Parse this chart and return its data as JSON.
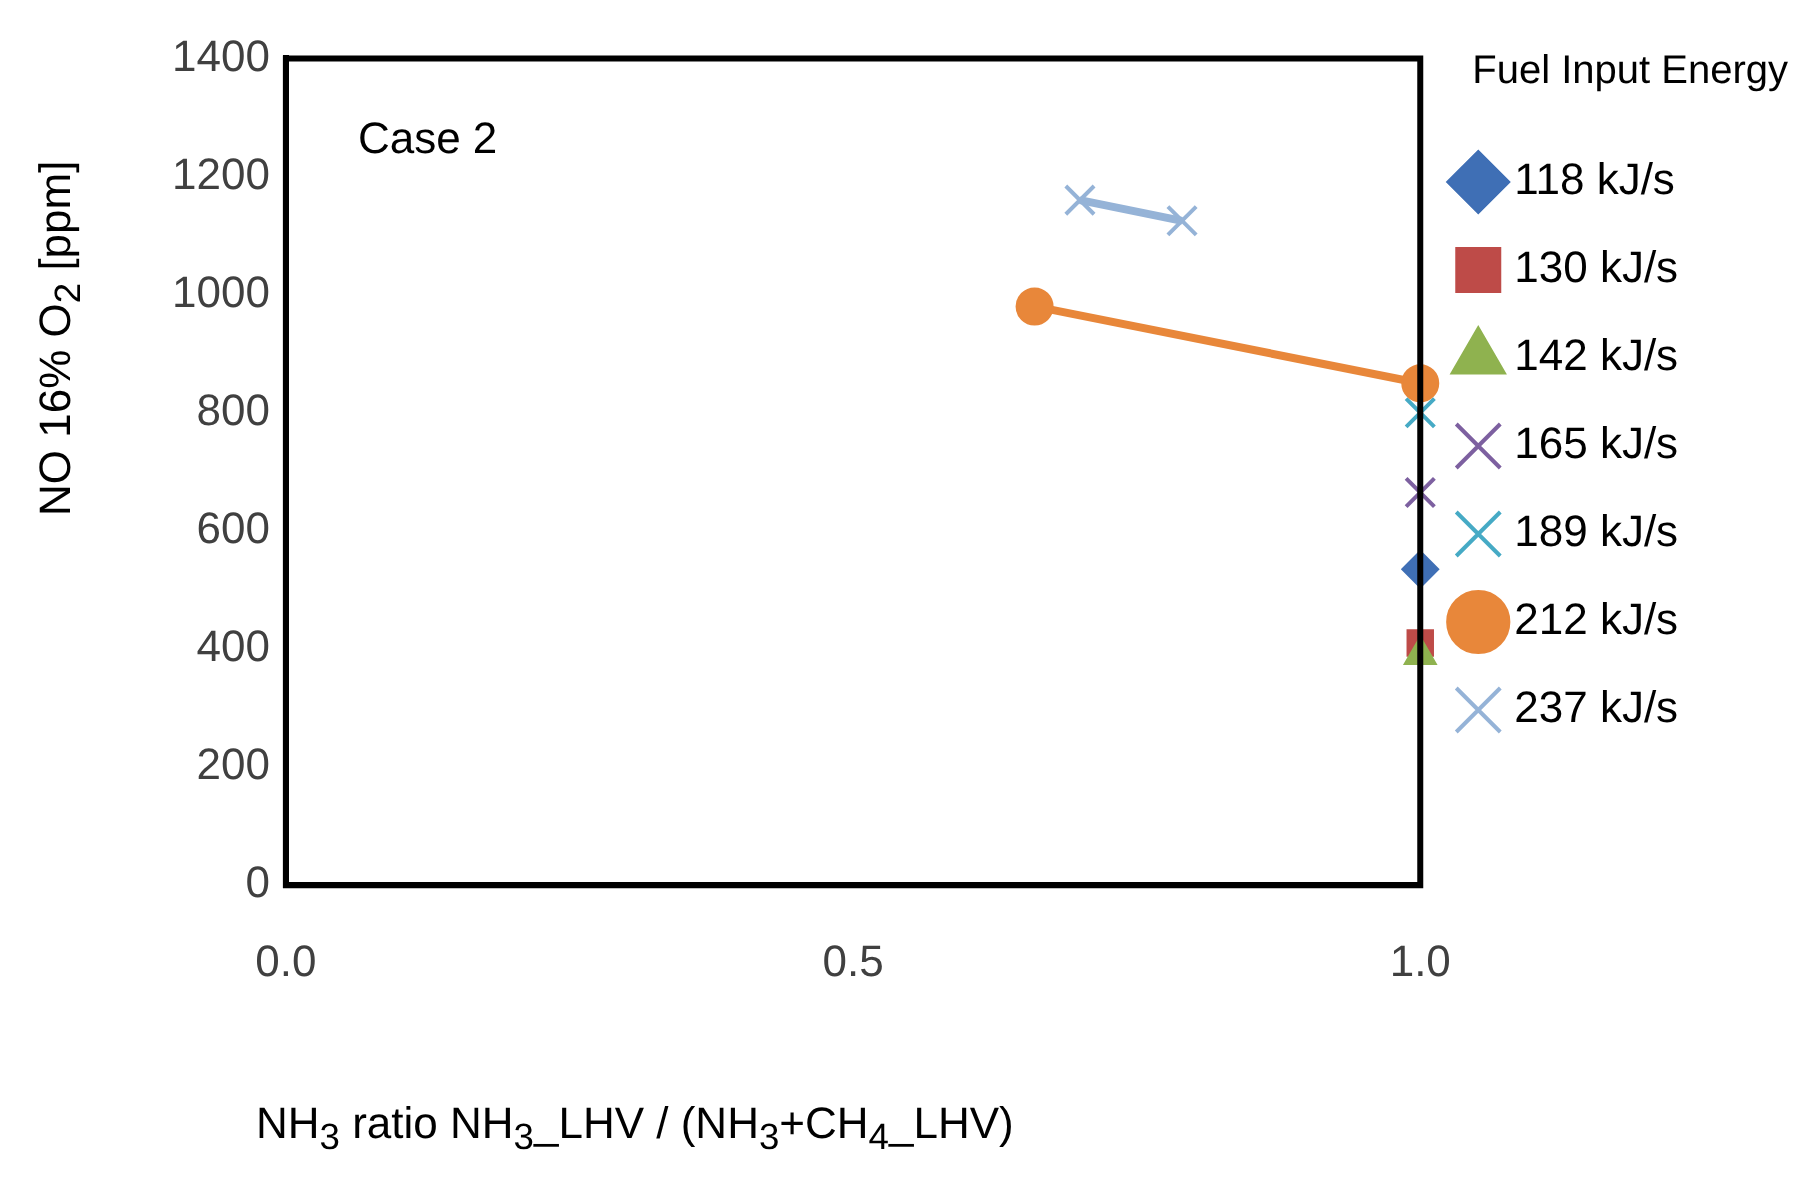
{
  "chart_data": {
    "type": "line",
    "xlabel": "NH$_{3}$ ratio  NH$_{3}$_LHV / (NH$_{3}$+CH$_{4}$_LHV)",
    "ylabel": "NO 16% O$_{2}$  [ppm]",
    "legend_title": "Fuel Input Energy",
    "legend": "right",
    "grid": false,
    "annotations": [
      "Case 2"
    ],
    "xlim": [
      0,
      1
    ],
    "xticks": [
      {
        "value": 0,
        "label": "0.0"
      },
      {
        "value": 0.5,
        "label": "0.5"
      },
      {
        "value": 1,
        "label": "1.0"
      }
    ],
    "ylim": [
      0,
      1400
    ],
    "yticks": [
      0,
      200,
      400,
      600,
      800,
      1000,
      1200,
      1400
    ],
    "series": [
      {
        "name": "118 kJ/s",
        "color": "#3f6fb5",
        "marker": "diamond",
        "x": [
          1.0
        ],
        "values": [
          535
        ]
      },
      {
        "name": "130 kJ/s",
        "color": "#be4b48",
        "marker": "square",
        "x": [
          1.0
        ],
        "values": [
          410
        ]
      },
      {
        "name": "142 kJ/s",
        "color": "#8fb24f",
        "marker": "triangle",
        "x": [
          1.0
        ],
        "values": [
          390
        ]
      },
      {
        "name": "165 kJ/s",
        "color": "#7d60a0",
        "marker": "cross",
        "x": [
          1.0
        ],
        "values": [
          665
        ]
      },
      {
        "name": "189 kJ/s",
        "color": "#46aac5",
        "marker": "cross",
        "x": [
          1.0
        ],
        "values": [
          800
        ]
      },
      {
        "name": "212 kJ/s",
        "color": "#e8873a",
        "marker": "circle",
        "x": [
          0.66,
          1.0
        ],
        "values": [
          980,
          850
        ]
      },
      {
        "name": "237 kJ/s",
        "color": "#95b3d7",
        "marker": "cross",
        "x": [
          0.7,
          0.79
        ],
        "values": [
          1160,
          1125
        ]
      }
    ]
  }
}
